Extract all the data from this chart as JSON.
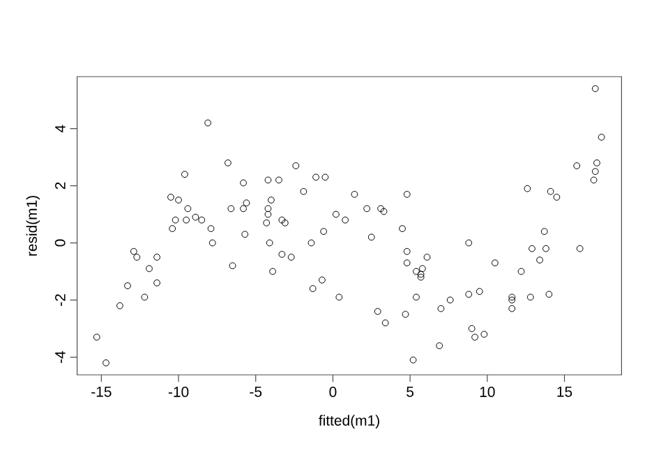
{
  "chart_data": {
    "type": "scatter",
    "xlabel": "fitted(m1)",
    "ylabel": "resid(m1)",
    "marker": "circle",
    "color": "#000000",
    "xlim": [
      -16.57,
      18.7
    ],
    "ylim": [
      -4.62,
      5.82
    ],
    "xticks": [
      -15,
      -10,
      -5,
      0,
      5,
      10,
      15
    ],
    "yticks": [
      -4,
      -2,
      0,
      2,
      4
    ],
    "x": [
      -15.3,
      -14.7,
      -13.8,
      -13.3,
      -12.9,
      -12.7,
      -12.2,
      -11.9,
      -11.4,
      -11.4,
      -10.5,
      -10.0,
      -10.4,
      -10.2,
      -9.6,
      -9.4,
      -9.5,
      -8.9,
      -8.5,
      -8.1,
      -7.9,
      -7.8,
      -6.8,
      -6.6,
      -6.5,
      -5.8,
      -5.8,
      -5.6,
      -5.7,
      -4.2,
      -3.5,
      -4.0,
      -4.2,
      -4.2,
      -4.3,
      -4.1,
      -3.9,
      -3.3,
      -3.1,
      -3.3,
      -2.7,
      -2.4,
      -1.9,
      -1.4,
      -1.3,
      -1.1,
      -0.5,
      -0.6,
      -0.7,
      0.2,
      0.4,
      0.8,
      1.4,
      2.2,
      2.5,
      2.9,
      3.1,
      3.3,
      3.4,
      4.5,
      4.7,
      4.8,
      4.8,
      4.8,
      5.2,
      5.4,
      5.7,
      5.8,
      5.7,
      6.1,
      5.4,
      7.0,
      6.9,
      7.6,
      8.8,
      8.8,
      9.0,
      9.2,
      9.5,
      9.8,
      10.5,
      11.6,
      11.6,
      11.6,
      12.2,
      12.6,
      12.8,
      12.9,
      13.4,
      13.7,
      13.8,
      14.0,
      14.1,
      14.5,
      15.8,
      16.0,
      17.0,
      17.4,
      17.1,
      17.0,
      16.9
    ],
    "values": [
      -3.3,
      -4.2,
      -2.2,
      -1.5,
      -0.3,
      -0.5,
      -1.9,
      -0.9,
      -1.4,
      -0.5,
      1.6,
      1.5,
      0.5,
      0.8,
      2.4,
      1.2,
      0.8,
      0.9,
      0.8,
      4.2,
      0.5,
      0.0,
      2.8,
      1.2,
      -0.8,
      2.1,
      1.2,
      1.4,
      0.3,
      2.2,
      2.2,
      1.5,
      1.2,
      1.0,
      0.7,
      0.0,
      -1.0,
      0.8,
      0.7,
      -0.4,
      -0.5,
      2.7,
      1.8,
      0.0,
      -1.6,
      2.3,
      2.3,
      0.4,
      -1.3,
      1.0,
      -1.9,
      0.8,
      1.7,
      1.2,
      0.2,
      -2.4,
      1.2,
      1.1,
      -2.8,
      0.5,
      -2.5,
      1.7,
      -0.3,
      -0.7,
      -4.1,
      -1.0,
      -1.1,
      -0.9,
      -1.2,
      -0.5,
      -1.9,
      -2.3,
      -3.6,
      -2.0,
      0.0,
      -1.8,
      -3.0,
      -3.3,
      -1.7,
      -3.2,
      -0.7,
      -1.9,
      -2.0,
      -2.3,
      -1.0,
      1.9,
      -1.9,
      -0.2,
      -0.6,
      0.4,
      -0.2,
      -1.8,
      1.8,
      1.6,
      2.7,
      -0.2,
      5.4,
      3.7,
      2.8,
      2.5,
      2.2
    ]
  }
}
